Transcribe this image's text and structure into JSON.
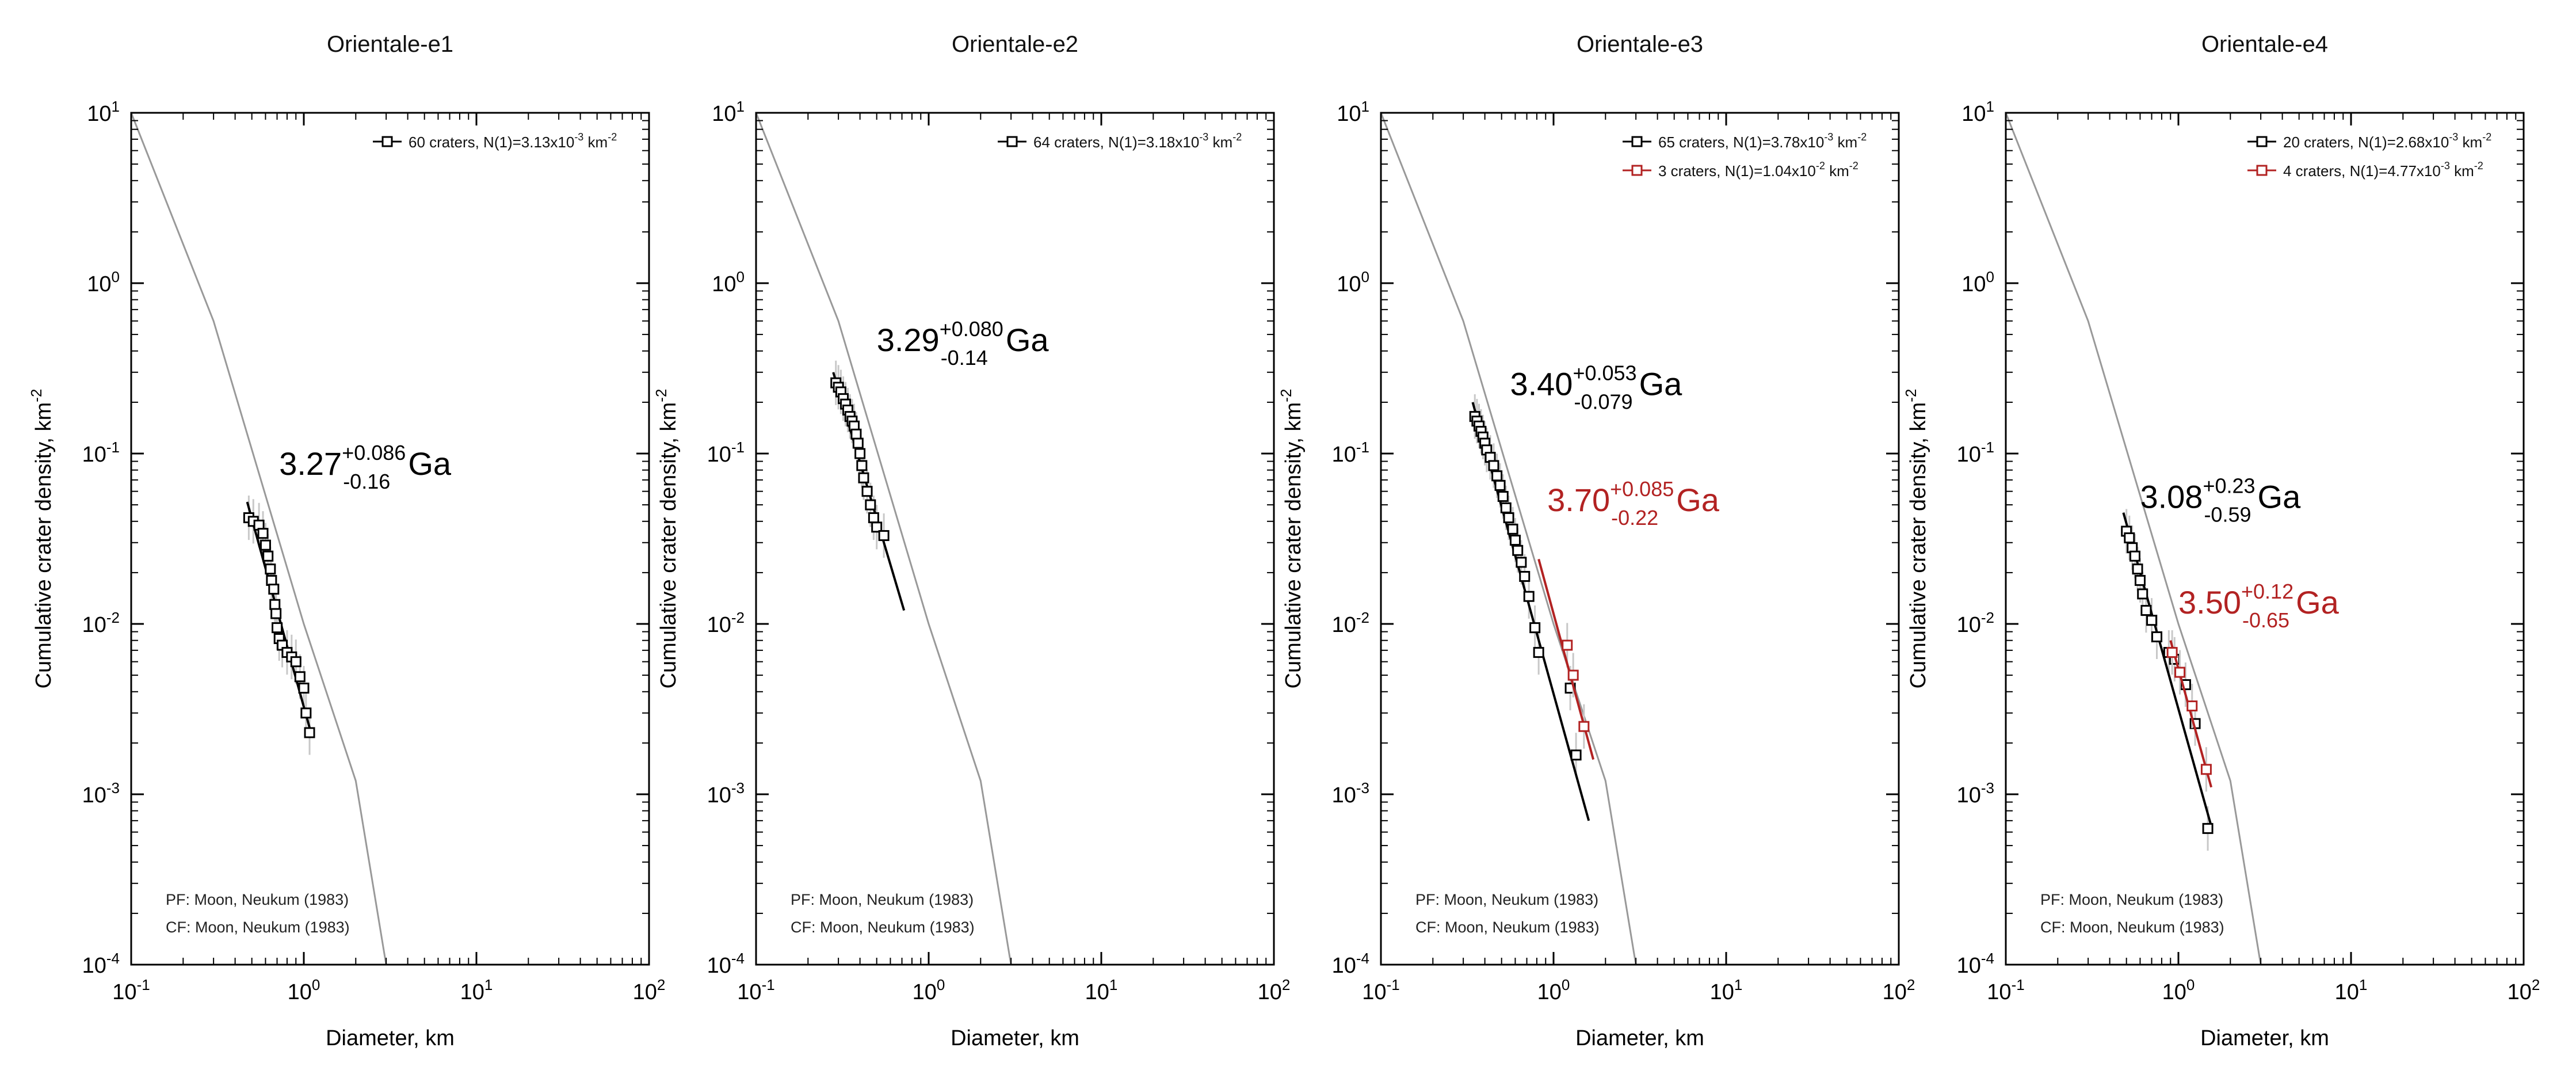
{
  "figure_title": "Crater size-frequency distributions",
  "colors": {
    "black": "#000000",
    "red": "#b22222",
    "pf_curve": "#999999",
    "error_bar": "#c8c8c8",
    "marker_fill": "#ffffff"
  },
  "chart_data": [
    {
      "type": "scatter",
      "title": "Orientale-e1",
      "xlabel": "Diameter, km",
      "ylabel": "Cumulative crater density, km",
      "ylabel_sup": "-2",
      "xscale": "log",
      "yscale": "log",
      "xlim": [
        0.1,
        100
      ],
      "ylim": [
        0.0001,
        10
      ],
      "xticks": [
        {
          "base": "10",
          "exp": "-1"
        },
        {
          "base": "10",
          "exp": "0"
        },
        {
          "base": "10",
          "exp": "1"
        },
        {
          "base": "10",
          "exp": "2"
        }
      ],
      "yticks": [
        {
          "base": "10",
          "exp": "-4"
        },
        {
          "base": "10",
          "exp": "-3"
        },
        {
          "base": "10",
          "exp": "-2"
        },
        {
          "base": "10",
          "exp": "-1"
        },
        {
          "base": "10",
          "exp": "0"
        },
        {
          "base": "10",
          "exp": "1"
        }
      ],
      "notes": [
        "PF: Moon, Neukum (1983)",
        "CF: Moon, Neukum (1983)"
      ],
      "pf_curve": {
        "x": [
          0.1,
          0.3,
          1,
          2,
          3
        ],
        "y": [
          10,
          0.6,
          0.01,
          0.0012,
          0.0001
        ]
      },
      "series": [
        {
          "color": "#000000",
          "legend": "60 craters, N(1)=3.13x10",
          "legend_sup": "-3",
          "legend_tail": " km",
          "legend_tail_sup": "-2",
          "age": {
            "value": "3.27",
            "plus": "+0.086",
            "minus": "-0.16",
            "unit": "Ga",
            "x": 0.72,
            "y": 0.075
          },
          "fit": {
            "x": [
              0.47,
              1.1
            ],
            "y": [
              0.052,
              0.0023
            ]
          },
          "points": [
            {
              "x": 0.48,
              "y": 0.042
            },
            {
              "x": 0.51,
              "y": 0.04
            },
            {
              "x": 0.55,
              "y": 0.038
            },
            {
              "x": 0.58,
              "y": 0.034
            },
            {
              "x": 0.6,
              "y": 0.029
            },
            {
              "x": 0.62,
              "y": 0.025
            },
            {
              "x": 0.64,
              "y": 0.021
            },
            {
              "x": 0.65,
              "y": 0.018
            },
            {
              "x": 0.67,
              "y": 0.016
            },
            {
              "x": 0.68,
              "y": 0.013
            },
            {
              "x": 0.69,
              "y": 0.0115
            },
            {
              "x": 0.7,
              "y": 0.0095
            },
            {
              "x": 0.72,
              "y": 0.0082
            },
            {
              "x": 0.75,
              "y": 0.0075
            },
            {
              "x": 0.8,
              "y": 0.0068
            },
            {
              "x": 0.85,
              "y": 0.0064
            },
            {
              "x": 0.9,
              "y": 0.006
            },
            {
              "x": 0.95,
              "y": 0.0049
            },
            {
              "x": 1.0,
              "y": 0.0042
            },
            {
              "x": 1.03,
              "y": 0.003
            },
            {
              "x": 1.08,
              "y": 0.0023
            }
          ]
        }
      ]
    },
    {
      "type": "scatter",
      "title": "Orientale-e2",
      "xlabel": "Diameter, km",
      "ylabel": "Cumulative crater density, km",
      "ylabel_sup": "-2",
      "xscale": "log",
      "yscale": "log",
      "xlim": [
        0.1,
        100
      ],
      "ylim": [
        0.0001,
        10
      ],
      "xticks": [
        {
          "base": "10",
          "exp": "-1"
        },
        {
          "base": "10",
          "exp": "0"
        },
        {
          "base": "10",
          "exp": "1"
        },
        {
          "base": "10",
          "exp": "2"
        }
      ],
      "yticks": [
        {
          "base": "10",
          "exp": "-4"
        },
        {
          "base": "10",
          "exp": "-3"
        },
        {
          "base": "10",
          "exp": "-2"
        },
        {
          "base": "10",
          "exp": "-1"
        },
        {
          "base": "10",
          "exp": "0"
        },
        {
          "base": "10",
          "exp": "1"
        }
      ],
      "notes": [
        "PF: Moon, Neukum (1983)",
        "CF: Moon, Neukum (1983)"
      ],
      "pf_curve": {
        "x": [
          0.1,
          0.3,
          1,
          2,
          3
        ],
        "y": [
          10,
          0.6,
          0.01,
          0.0012,
          0.0001
        ]
      },
      "series": [
        {
          "color": "#000000",
          "legend": "64 craters, N(1)=3.18x10",
          "legend_sup": "-3",
          "legend_tail": " km",
          "legend_tail_sup": "-2",
          "age": {
            "value": "3.29",
            "plus": "+0.080",
            "minus": "-0.14",
            "unit": "Ga",
            "x": 0.5,
            "y": 0.4
          },
          "fit": {
            "x": [
              0.28,
              0.72
            ],
            "y": [
              0.3,
              0.012
            ]
          },
          "points": [
            {
              "x": 0.29,
              "y": 0.26
            },
            {
              "x": 0.3,
              "y": 0.245
            },
            {
              "x": 0.31,
              "y": 0.23
            },
            {
              "x": 0.32,
              "y": 0.21
            },
            {
              "x": 0.33,
              "y": 0.195
            },
            {
              "x": 0.34,
              "y": 0.18
            },
            {
              "x": 0.35,
              "y": 0.165
            },
            {
              "x": 0.36,
              "y": 0.155
            },
            {
              "x": 0.37,
              "y": 0.145
            },
            {
              "x": 0.38,
              "y": 0.13
            },
            {
              "x": 0.39,
              "y": 0.115
            },
            {
              "x": 0.4,
              "y": 0.1
            },
            {
              "x": 0.41,
              "y": 0.085
            },
            {
              "x": 0.42,
              "y": 0.072
            },
            {
              "x": 0.44,
              "y": 0.06
            },
            {
              "x": 0.46,
              "y": 0.05
            },
            {
              "x": 0.48,
              "y": 0.042
            },
            {
              "x": 0.5,
              "y": 0.037
            },
            {
              "x": 0.55,
              "y": 0.033
            }
          ]
        }
      ]
    },
    {
      "type": "scatter",
      "title": "Orientale-e3",
      "xlabel": "Diameter, km",
      "ylabel": "Cumulative crater density, km",
      "ylabel_sup": "-2",
      "xscale": "log",
      "yscale": "log",
      "xlim": [
        0.1,
        100
      ],
      "ylim": [
        0.0001,
        10
      ],
      "xticks": [
        {
          "base": "10",
          "exp": "-1"
        },
        {
          "base": "10",
          "exp": "0"
        },
        {
          "base": "10",
          "exp": "1"
        },
        {
          "base": "10",
          "exp": "2"
        }
      ],
      "yticks": [
        {
          "base": "10",
          "exp": "-4"
        },
        {
          "base": "10",
          "exp": "-3"
        },
        {
          "base": "10",
          "exp": "-2"
        },
        {
          "base": "10",
          "exp": "-1"
        },
        {
          "base": "10",
          "exp": "0"
        },
        {
          "base": "10",
          "exp": "1"
        }
      ],
      "notes": [
        "PF: Moon, Neukum (1983)",
        "CF: Moon, Neukum (1983)"
      ],
      "pf_curve": {
        "x": [
          0.1,
          0.3,
          1,
          2,
          3
        ],
        "y": [
          10,
          0.6,
          0.01,
          0.0012,
          0.0001
        ]
      },
      "series": [
        {
          "color": "#000000",
          "legend": "65 craters, N(1)=3.78x10",
          "legend_sup": "-3",
          "legend_tail": " km",
          "legend_tail_sup": "-2",
          "age": {
            "value": "3.40",
            "plus": "+0.053",
            "minus": "-0.079",
            "unit": "Ga",
            "x": 0.56,
            "y": 0.22
          },
          "fit": {
            "x": [
              0.34,
              1.6
            ],
            "y": [
              0.2,
              0.0007
            ]
          },
          "points": [
            {
              "x": 0.35,
              "y": 0.165
            },
            {
              "x": 0.36,
              "y": 0.155
            },
            {
              "x": 0.37,
              "y": 0.145
            },
            {
              "x": 0.38,
              "y": 0.135
            },
            {
              "x": 0.39,
              "y": 0.125
            },
            {
              "x": 0.4,
              "y": 0.115
            },
            {
              "x": 0.41,
              "y": 0.105
            },
            {
              "x": 0.43,
              "y": 0.095
            },
            {
              "x": 0.45,
              "y": 0.085
            },
            {
              "x": 0.47,
              "y": 0.074
            },
            {
              "x": 0.49,
              "y": 0.065
            },
            {
              "x": 0.51,
              "y": 0.056
            },
            {
              "x": 0.53,
              "y": 0.048
            },
            {
              "x": 0.55,
              "y": 0.042
            },
            {
              "x": 0.58,
              "y": 0.036
            },
            {
              "x": 0.6,
              "y": 0.031
            },
            {
              "x": 0.62,
              "y": 0.027
            },
            {
              "x": 0.65,
              "y": 0.023
            },
            {
              "x": 0.68,
              "y": 0.019
            },
            {
              "x": 0.72,
              "y": 0.0145
            },
            {
              "x": 0.78,
              "y": 0.0095
            },
            {
              "x": 0.82,
              "y": 0.0068
            },
            {
              "x": 1.25,
              "y": 0.0042
            },
            {
              "x": 1.35,
              "y": 0.0017
            }
          ]
        },
        {
          "color": "#b22222",
          "legend": "3 craters, N(1)=1.04x10",
          "legend_sup": "-2",
          "legend_tail": " km",
          "legend_tail_sup": "-2",
          "age": {
            "value": "3.70",
            "plus": "+0.085",
            "minus": "-0.22",
            "unit": "Ga",
            "x": 0.92,
            "y": 0.046
          },
          "fit": {
            "x": [
              0.82,
              1.7
            ],
            "y": [
              0.024,
              0.0016
            ]
          },
          "points": [
            {
              "x": 1.2,
              "y": 0.0075
            },
            {
              "x": 1.3,
              "y": 0.005
            },
            {
              "x": 1.5,
              "y": 0.0025
            }
          ]
        }
      ]
    },
    {
      "type": "scatter",
      "title": "Orientale-e4",
      "xlabel": "Diameter, km",
      "ylabel": "Cumulative crater density, km",
      "ylabel_sup": "-2",
      "xscale": "log",
      "yscale": "log",
      "xlim": [
        0.1,
        100
      ],
      "ylim": [
        0.0001,
        10
      ],
      "xticks": [
        {
          "base": "10",
          "exp": "-1"
        },
        {
          "base": "10",
          "exp": "0"
        },
        {
          "base": "10",
          "exp": "1"
        },
        {
          "base": "10",
          "exp": "2"
        }
      ],
      "yticks": [
        {
          "base": "10",
          "exp": "-4"
        },
        {
          "base": "10",
          "exp": "-3"
        },
        {
          "base": "10",
          "exp": "-2"
        },
        {
          "base": "10",
          "exp": "-1"
        },
        {
          "base": "10",
          "exp": "0"
        },
        {
          "base": "10",
          "exp": "1"
        }
      ],
      "notes": [
        "PF: Moon, Neukum (1983)",
        "CF: Moon, Neukum (1983)"
      ],
      "pf_curve": {
        "x": [
          0.1,
          0.3,
          1,
          2,
          3
        ],
        "y": [
          10,
          0.6,
          0.01,
          0.0012,
          0.0001
        ]
      },
      "series": [
        {
          "color": "#000000",
          "legend": "20 craters, N(1)=2.68x10",
          "legend_sup": "-3",
          "legend_tail": " km",
          "legend_tail_sup": "-2",
          "age": {
            "value": "3.08",
            "plus": "+0.23",
            "minus": "-0.59",
            "unit": "Ga",
            "x": 0.6,
            "y": 0.048
          },
          "fit": {
            "x": [
              0.48,
              1.55
            ],
            "y": [
              0.045,
              0.00065
            ]
          },
          "points": [
            {
              "x": 0.5,
              "y": 0.035
            },
            {
              "x": 0.52,
              "y": 0.032
            },
            {
              "x": 0.54,
              "y": 0.028
            },
            {
              "x": 0.56,
              "y": 0.025
            },
            {
              "x": 0.58,
              "y": 0.021
            },
            {
              "x": 0.6,
              "y": 0.018
            },
            {
              "x": 0.62,
              "y": 0.015
            },
            {
              "x": 0.65,
              "y": 0.012
            },
            {
              "x": 0.7,
              "y": 0.0105
            },
            {
              "x": 0.75,
              "y": 0.0084
            },
            {
              "x": 0.88,
              "y": 0.0068
            },
            {
              "x": 0.95,
              "y": 0.0062
            },
            {
              "x": 1.1,
              "y": 0.0044
            },
            {
              "x": 1.25,
              "y": 0.0026
            },
            {
              "x": 1.48,
              "y": 0.00063
            }
          ]
        },
        {
          "color": "#b22222",
          "legend": "4 craters, N(1)=4.77x10",
          "legend_sup": "-3",
          "legend_tail": " km",
          "legend_tail_sup": "-2",
          "age": {
            "value": "3.50",
            "plus": "+0.12",
            "minus": "-0.65",
            "unit": "Ga",
            "x": 1.0,
            "y": 0.0115
          },
          "fit": {
            "x": [
              0.9,
              1.55
            ],
            "y": [
              0.008,
              0.0011
            ]
          },
          "points": [
            {
              "x": 0.92,
              "y": 0.0068
            },
            {
              "x": 1.02,
              "y": 0.0052
            },
            {
              "x": 1.2,
              "y": 0.0033
            },
            {
              "x": 1.45,
              "y": 0.0014
            }
          ]
        }
      ]
    }
  ]
}
